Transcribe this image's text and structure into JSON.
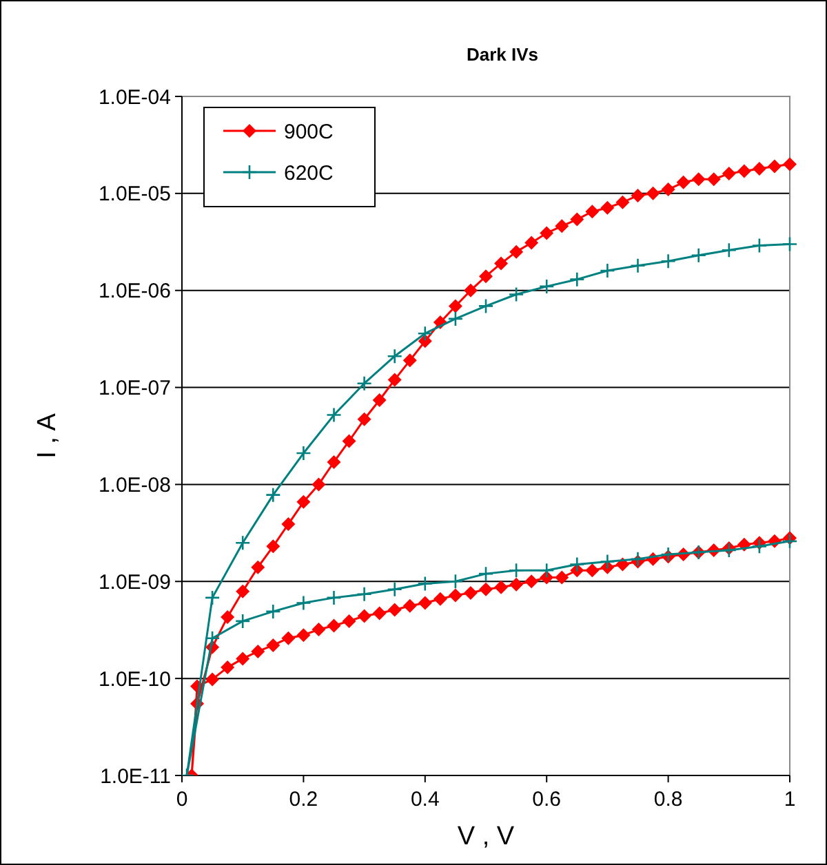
{
  "chart_data": {
    "type": "line",
    "title": "Dark IVs",
    "xlabel": "V , V",
    "ylabel": "I , A",
    "log": "y",
    "grid": "y",
    "legend": "top left",
    "xlim": [
      0,
      1
    ],
    "xticks": [
      0,
      0.2,
      0.4,
      0.6,
      0.8,
      1
    ],
    "ylim": [
      1e-11,
      0.0001
    ],
    "yticks": [
      {
        "value": 1e-11,
        "label": "1.0E-11"
      },
      {
        "value": 1e-10,
        "label": "1.0E-10"
      },
      {
        "value": 1e-09,
        "label": "1.0E-09"
      },
      {
        "value": 1e-08,
        "label": "1.0E-08"
      },
      {
        "value": 1e-07,
        "label": "1.0E-07"
      },
      {
        "value": 1e-06,
        "label": "1.0E-06"
      },
      {
        "value": 1e-05,
        "label": "1.0E-05"
      },
      {
        "value": 0.0001,
        "label": "1.0E-04"
      }
    ],
    "series": [
      {
        "name": "900C",
        "color": "#ff0000",
        "marker": "diamond",
        "line_style": "solid",
        "x": [
          1,
          0.975,
          0.95,
          0.925,
          0.9,
          0.875,
          0.85,
          0.825,
          0.8,
          0.775,
          0.75,
          0.725,
          0.7,
          0.675,
          0.65,
          0.625,
          0.6,
          0.575,
          0.55,
          0.525,
          0.5,
          0.475,
          0.45,
          0.425,
          0.4,
          0.375,
          0.35,
          0.325,
          0.3,
          0.275,
          0.25,
          0.225,
          0.2,
          0.175,
          0.15,
          0.125,
          0.1,
          0.075,
          0.05,
          0.025,
          0.016,
          0.025,
          0.05,
          0.075,
          0.1,
          0.125,
          0.15,
          0.175,
          0.2,
          0.225,
          0.25,
          0.275,
          0.3,
          0.325,
          0.35,
          0.375,
          0.4,
          0.425,
          0.45,
          0.475,
          0.5,
          0.525,
          0.55,
          0.575,
          0.6,
          0.625,
          0.65,
          0.675,
          0.7,
          0.725,
          0.75,
          0.775,
          0.8,
          0.825,
          0.85,
          0.875,
          0.9,
          0.925,
          0.95,
          0.975,
          1
        ],
        "values": [
          2.8e-09,
          2.6e-09,
          2.5e-09,
          2.4e-09,
          2.2e-09,
          2.1e-09,
          2e-09,
          1.9e-09,
          1.8e-09,
          1.7e-09,
          1.6e-09,
          1.5e-09,
          1.4e-09,
          1.3e-09,
          1.3e-09,
          1.1e-09,
          1.1e-09,
          1e-09,
          9.3e-10,
          8.7e-10,
          8.3e-10,
          7.6e-10,
          7.2e-10,
          6.6e-10,
          6e-10,
          5.6e-10,
          5.1e-10,
          4.7e-10,
          4.4e-10,
          3.9e-10,
          3.5e-10,
          3.2e-10,
          2.8e-10,
          2.6e-10,
          2.2e-10,
          1.9e-10,
          1.6e-10,
          1.3e-10,
          9.8e-11,
          8.3e-11,
          1e-11,
          5.5e-11,
          2.1e-10,
          4.3e-10,
          7.9e-10,
          1.4e-09,
          2.3e-09,
          3.9e-09,
          6.6e-09,
          1e-08,
          1.7e-08,
          2.8e-08,
          4.7e-08,
          7.4e-08,
          1.2e-07,
          1.9e-07,
          3e-07,
          4.7e-07,
          6.9e-07,
          1e-06,
          1.4e-06,
          1.9e-06,
          2.5e-06,
          3.1e-06,
          3.9e-06,
          4.6e-06,
          5.4e-06,
          6.5e-06,
          7.1e-06,
          8.1e-06,
          9.5e-06,
          1e-05,
          1.1e-05,
          1.3e-05,
          1.4e-05,
          1.4e-05,
          1.6e-05,
          1.7e-05,
          1.8e-05,
          1.9e-05,
          2e-05
        ]
      },
      {
        "name": "620C",
        "color": "#008080",
        "marker": "cross",
        "line_style": "solid",
        "x": [
          1,
          0.95,
          0.9,
          0.85,
          0.8,
          0.75,
          0.7,
          0.65,
          0.6,
          0.55,
          0.5,
          0.45,
          0.4,
          0.35,
          0.3,
          0.25,
          0.2,
          0.15,
          0.1,
          0.05,
          0.008,
          0.05,
          0.1,
          0.15,
          0.2,
          0.25,
          0.3,
          0.35,
          0.4,
          0.45,
          0.5,
          0.55,
          0.6,
          0.65,
          0.7,
          0.75,
          0.8,
          0.85,
          0.9,
          0.95,
          1
        ],
        "values": [
          2.6e-09,
          2.3e-09,
          2.1e-09,
          2e-09,
          1.9e-09,
          1.7e-09,
          1.6e-09,
          1.5e-09,
          1.3e-09,
          1.3e-09,
          1.2e-09,
          1e-09,
          9.5e-10,
          8.3e-10,
          7.4e-10,
          6.8e-10,
          6e-10,
          4.9e-10,
          3.9e-10,
          2.6e-10,
          1e-11,
          6.8e-10,
          2.5e-09,
          7.8e-09,
          2.1e-08,
          5.2e-08,
          1.1e-07,
          2.1e-07,
          3.6e-07,
          5.1e-07,
          6.9e-07,
          9.1e-07,
          1.1e-06,
          1.3e-06,
          1.6e-06,
          1.8e-06,
          2e-06,
          2.3e-06,
          2.6e-06,
          2.9e-06,
          3e-06
        ]
      }
    ]
  }
}
